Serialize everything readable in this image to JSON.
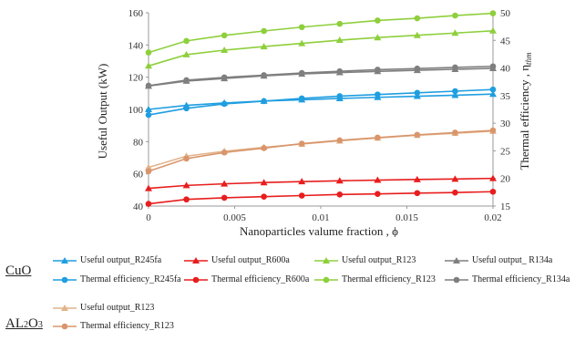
{
  "chart_data": {
    "type": "line",
    "xlabel": "Nanoparticles valume fraction , ϕ",
    "ylabel_left": "Useful Output (kW)",
    "ylabel_right": "Thermal efficiency , η",
    "ylabel_right_sub": "thm",
    "x_ticks": [
      "0",
      "0.005",
      "0.01",
      "0.015",
      "0.02"
    ],
    "y_left_ticks": [
      "40",
      "60",
      "80",
      "100",
      "120",
      "140",
      "160"
    ],
    "y_right_ticks": [
      "15",
      "20",
      "25",
      "30",
      "35",
      "40",
      "45",
      "50"
    ],
    "xlim": [
      0,
      0.02
    ],
    "ylim_left": [
      40,
      160
    ],
    "ylim_right": [
      15,
      50
    ],
    "grid": false,
    "x": [
      0,
      0.0022,
      0.0044,
      0.0067,
      0.0089,
      0.0111,
      0.0133,
      0.0156,
      0.0178,
      0.02
    ],
    "series": [
      {
        "name": "Useful output_R245fa",
        "axis": "left",
        "color": "#1f9ee0",
        "marker": "triangle",
        "values": [
          100,
          102.5,
          104,
          105.2,
          106,
          106.8,
          107.5,
          108.2,
          108.8,
          109.5
        ]
      },
      {
        "name": "Useful output_R600a",
        "axis": "left",
        "color": "#e81d1d",
        "marker": "triangle",
        "values": [
          51,
          52.8,
          53.8,
          54.6,
          55.2,
          55.7,
          56.1,
          56.5,
          56.8,
          57.2
        ]
      },
      {
        "name": "Useful output_R123",
        "axis": "left",
        "color": "#8ecf3c",
        "marker": "triangle",
        "values": [
          127,
          134,
          136.8,
          139,
          141,
          143,
          144.6,
          146,
          147.4,
          148.8
        ]
      },
      {
        "name": "Useful output_ R134a",
        "axis": "left",
        "color": "#7f7f7f",
        "marker": "triangle",
        "values": [
          114.5,
          117.6,
          119.2,
          120.8,
          122,
          122.9,
          123.6,
          124.3,
          124.9,
          125.5
        ]
      },
      {
        "name": "Thermal efficiency_R245fa",
        "axis": "right",
        "color": "#1f9ee0",
        "marker": "circle",
        "values": [
          31.5,
          32.7,
          33.5,
          34,
          34.5,
          34.9,
          35.2,
          35.5,
          35.8,
          36.1
        ]
      },
      {
        "name": "Thermal efficiency_R600a",
        "axis": "right",
        "color": "#e81d1d",
        "marker": "circle",
        "values": [
          15.4,
          16.2,
          16.5,
          16.7,
          16.9,
          17.1,
          17.2,
          17.35,
          17.45,
          17.6
        ]
      },
      {
        "name": "Thermal efficiency_R123",
        "axis": "right",
        "color": "#8ecf3c",
        "marker": "circle",
        "values": [
          42.8,
          44.9,
          45.9,
          46.7,
          47.4,
          48,
          48.6,
          49,
          49.5,
          49.9
        ]
      },
      {
        "name": "Thermal efficiency_R134a",
        "axis": "right",
        "color": "#7f7f7f",
        "marker": "circle",
        "values": [
          36.8,
          37.8,
          38.3,
          38.7,
          39.1,
          39.4,
          39.7,
          39.9,
          40.1,
          40.3
        ]
      },
      {
        "name": "Useful output_R123",
        "axis": "left",
        "color": "#e2b48a",
        "marker": "triangle",
        "group": "AL2O3",
        "values": [
          64,
          71,
          74,
          76.5,
          78.5,
          80.5,
          82.3,
          84,
          85.2,
          86.5
        ]
      },
      {
        "name": "Thermal efficiency_R123",
        "axis": "right",
        "color": "#d9956b",
        "marker": "circle",
        "group": "AL2O3",
        "values": [
          21.3,
          23.6,
          24.7,
          25.5,
          26.3,
          26.9,
          27.4,
          27.9,
          28.3,
          28.7
        ]
      }
    ]
  },
  "legend": {
    "group_cuo": "CuO",
    "group_al2o3_main": "AL",
    "group_al2o3_sub1": "2",
    "group_al2o3_o": "O",
    "group_al2o3_sub2": "3"
  }
}
